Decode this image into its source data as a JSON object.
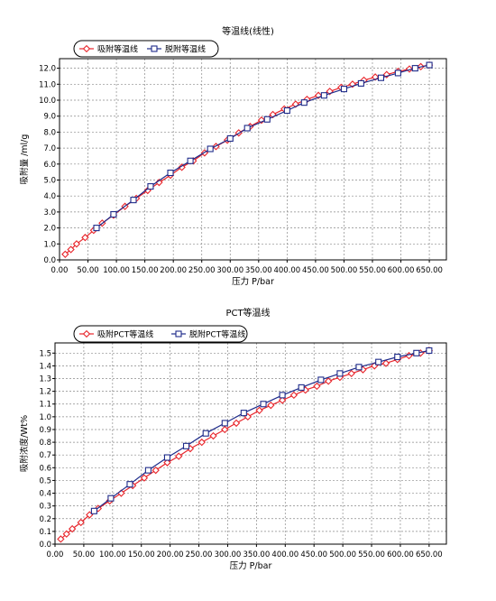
{
  "chart_data": [
    {
      "type": "line",
      "title": "等温线(线性)",
      "xlabel": "压力 P/bar",
      "ylabel": "吸附量 /ml/g",
      "xlim": [
        0,
        680
      ],
      "ylim": [
        0,
        12.6
      ],
      "xticks": [
        0,
        50,
        100,
        150,
        200,
        250,
        300,
        350,
        400,
        450,
        500,
        550,
        600,
        650
      ],
      "xtick_labels": [
        "0.00",
        "50.00",
        "100.00",
        "150.00",
        "200.00",
        "250.00",
        "300.00",
        "350.00",
        "400.00",
        "450.00",
        "500.00",
        "550.00",
        "600.00",
        "650.00"
      ],
      "yticks": [
        0,
        1,
        2,
        3,
        4,
        5,
        6,
        7,
        8,
        9,
        10,
        11,
        12
      ],
      "ytick_labels": [
        "0.0",
        "1.0",
        "2.0",
        "3.0",
        "4.0",
        "5.0",
        "6.0",
        "7.0",
        "8.0",
        "9.0",
        "10.0",
        "11.0",
        "12.0"
      ],
      "grid": true,
      "legend_position": "top-left",
      "series": [
        {
          "name": "吸附等温线",
          "color": "#e8252b",
          "marker": "diamond",
          "x": [
            10,
            20,
            30,
            45,
            60,
            75,
            95,
            115,
            135,
            155,
            175,
            195,
            215,
            235,
            255,
            275,
            295,
            315,
            335,
            355,
            375,
            395,
            415,
            435,
            455,
            475,
            495,
            515,
            535,
            555,
            575,
            595,
            615,
            635,
            650
          ],
          "y": [
            0.35,
            0.65,
            1.0,
            1.4,
            1.85,
            2.3,
            2.8,
            3.35,
            3.85,
            4.35,
            4.85,
            5.3,
            5.8,
            6.2,
            6.7,
            7.1,
            7.5,
            7.95,
            8.35,
            8.75,
            9.1,
            9.45,
            9.75,
            10.05,
            10.3,
            10.55,
            10.8,
            11.0,
            11.25,
            11.45,
            11.6,
            11.8,
            11.95,
            12.1,
            12.2
          ]
        },
        {
          "name": "脱附等温线",
          "color": "#1e2b8a",
          "marker": "square",
          "x": [
            65,
            95,
            130,
            160,
            195,
            230,
            265,
            300,
            330,
            365,
            400,
            430,
            465,
            500,
            530,
            565,
            595,
            625,
            650
          ],
          "y": [
            2.0,
            2.85,
            3.75,
            4.6,
            5.45,
            6.2,
            6.95,
            7.6,
            8.25,
            8.8,
            9.35,
            9.85,
            10.3,
            10.7,
            11.05,
            11.4,
            11.7,
            12.0,
            12.2
          ]
        }
      ]
    },
    {
      "type": "line",
      "title": "PCT等温线",
      "xlabel": "压力 P/bar",
      "ylabel": "吸附浓度/Wt%",
      "xlim": [
        0,
        680
      ],
      "ylim": [
        0,
        1.58
      ],
      "xticks": [
        0,
        50,
        100,
        150,
        200,
        250,
        300,
        350,
        400,
        450,
        500,
        550,
        600,
        650
      ],
      "xtick_labels": [
        "0.00",
        "50.00",
        "100.00",
        "150.00",
        "200.00",
        "250.00",
        "300.00",
        "350.00",
        "400.00",
        "450.00",
        "500.00",
        "550.00",
        "600.00",
        "650.00"
      ],
      "yticks": [
        0,
        0.1,
        0.2,
        0.3,
        0.4,
        0.5,
        0.6,
        0.7,
        0.8,
        0.9,
        1.0,
        1.1,
        1.2,
        1.3,
        1.4,
        1.5
      ],
      "ytick_labels": [
        "0.0",
        "0.1",
        "0.2",
        "0.3",
        "0.4",
        "0.5",
        "0.6",
        "0.7",
        "0.8",
        "0.9",
        "1.0",
        "1.1",
        "1.2",
        "1.3",
        "1.4",
        "1.5"
      ],
      "grid": true,
      "legend_position": "top-left",
      "series": [
        {
          "name": "吸附PCT等温线",
          "color": "#e8252b",
          "marker": "diamond",
          "x": [
            10,
            20,
            30,
            45,
            60,
            75,
            95,
            115,
            135,
            155,
            175,
            195,
            215,
            235,
            255,
            275,
            295,
            315,
            335,
            355,
            375,
            395,
            415,
            435,
            455,
            475,
            495,
            515,
            535,
            555,
            575,
            595,
            615,
            635,
            650
          ],
          "y": [
            0.04,
            0.08,
            0.12,
            0.17,
            0.23,
            0.28,
            0.34,
            0.4,
            0.46,
            0.52,
            0.58,
            0.64,
            0.69,
            0.75,
            0.8,
            0.85,
            0.9,
            0.95,
            1.0,
            1.05,
            1.09,
            1.13,
            1.17,
            1.21,
            1.24,
            1.28,
            1.31,
            1.34,
            1.37,
            1.4,
            1.42,
            1.45,
            1.48,
            1.5,
            1.52
          ]
        },
        {
          "name": "脱附PCT等温线",
          "color": "#1e2b8a",
          "marker": "square",
          "x": [
            68,
            97,
            130,
            162,
            195,
            228,
            262,
            295,
            328,
            362,
            395,
            428,
            462,
            495,
            528,
            562,
            595,
            628,
            650
          ],
          "y": [
            0.26,
            0.36,
            0.47,
            0.58,
            0.68,
            0.77,
            0.87,
            0.95,
            1.03,
            1.1,
            1.17,
            1.23,
            1.29,
            1.34,
            1.39,
            1.43,
            1.47,
            1.5,
            1.52
          ]
        }
      ]
    }
  ]
}
